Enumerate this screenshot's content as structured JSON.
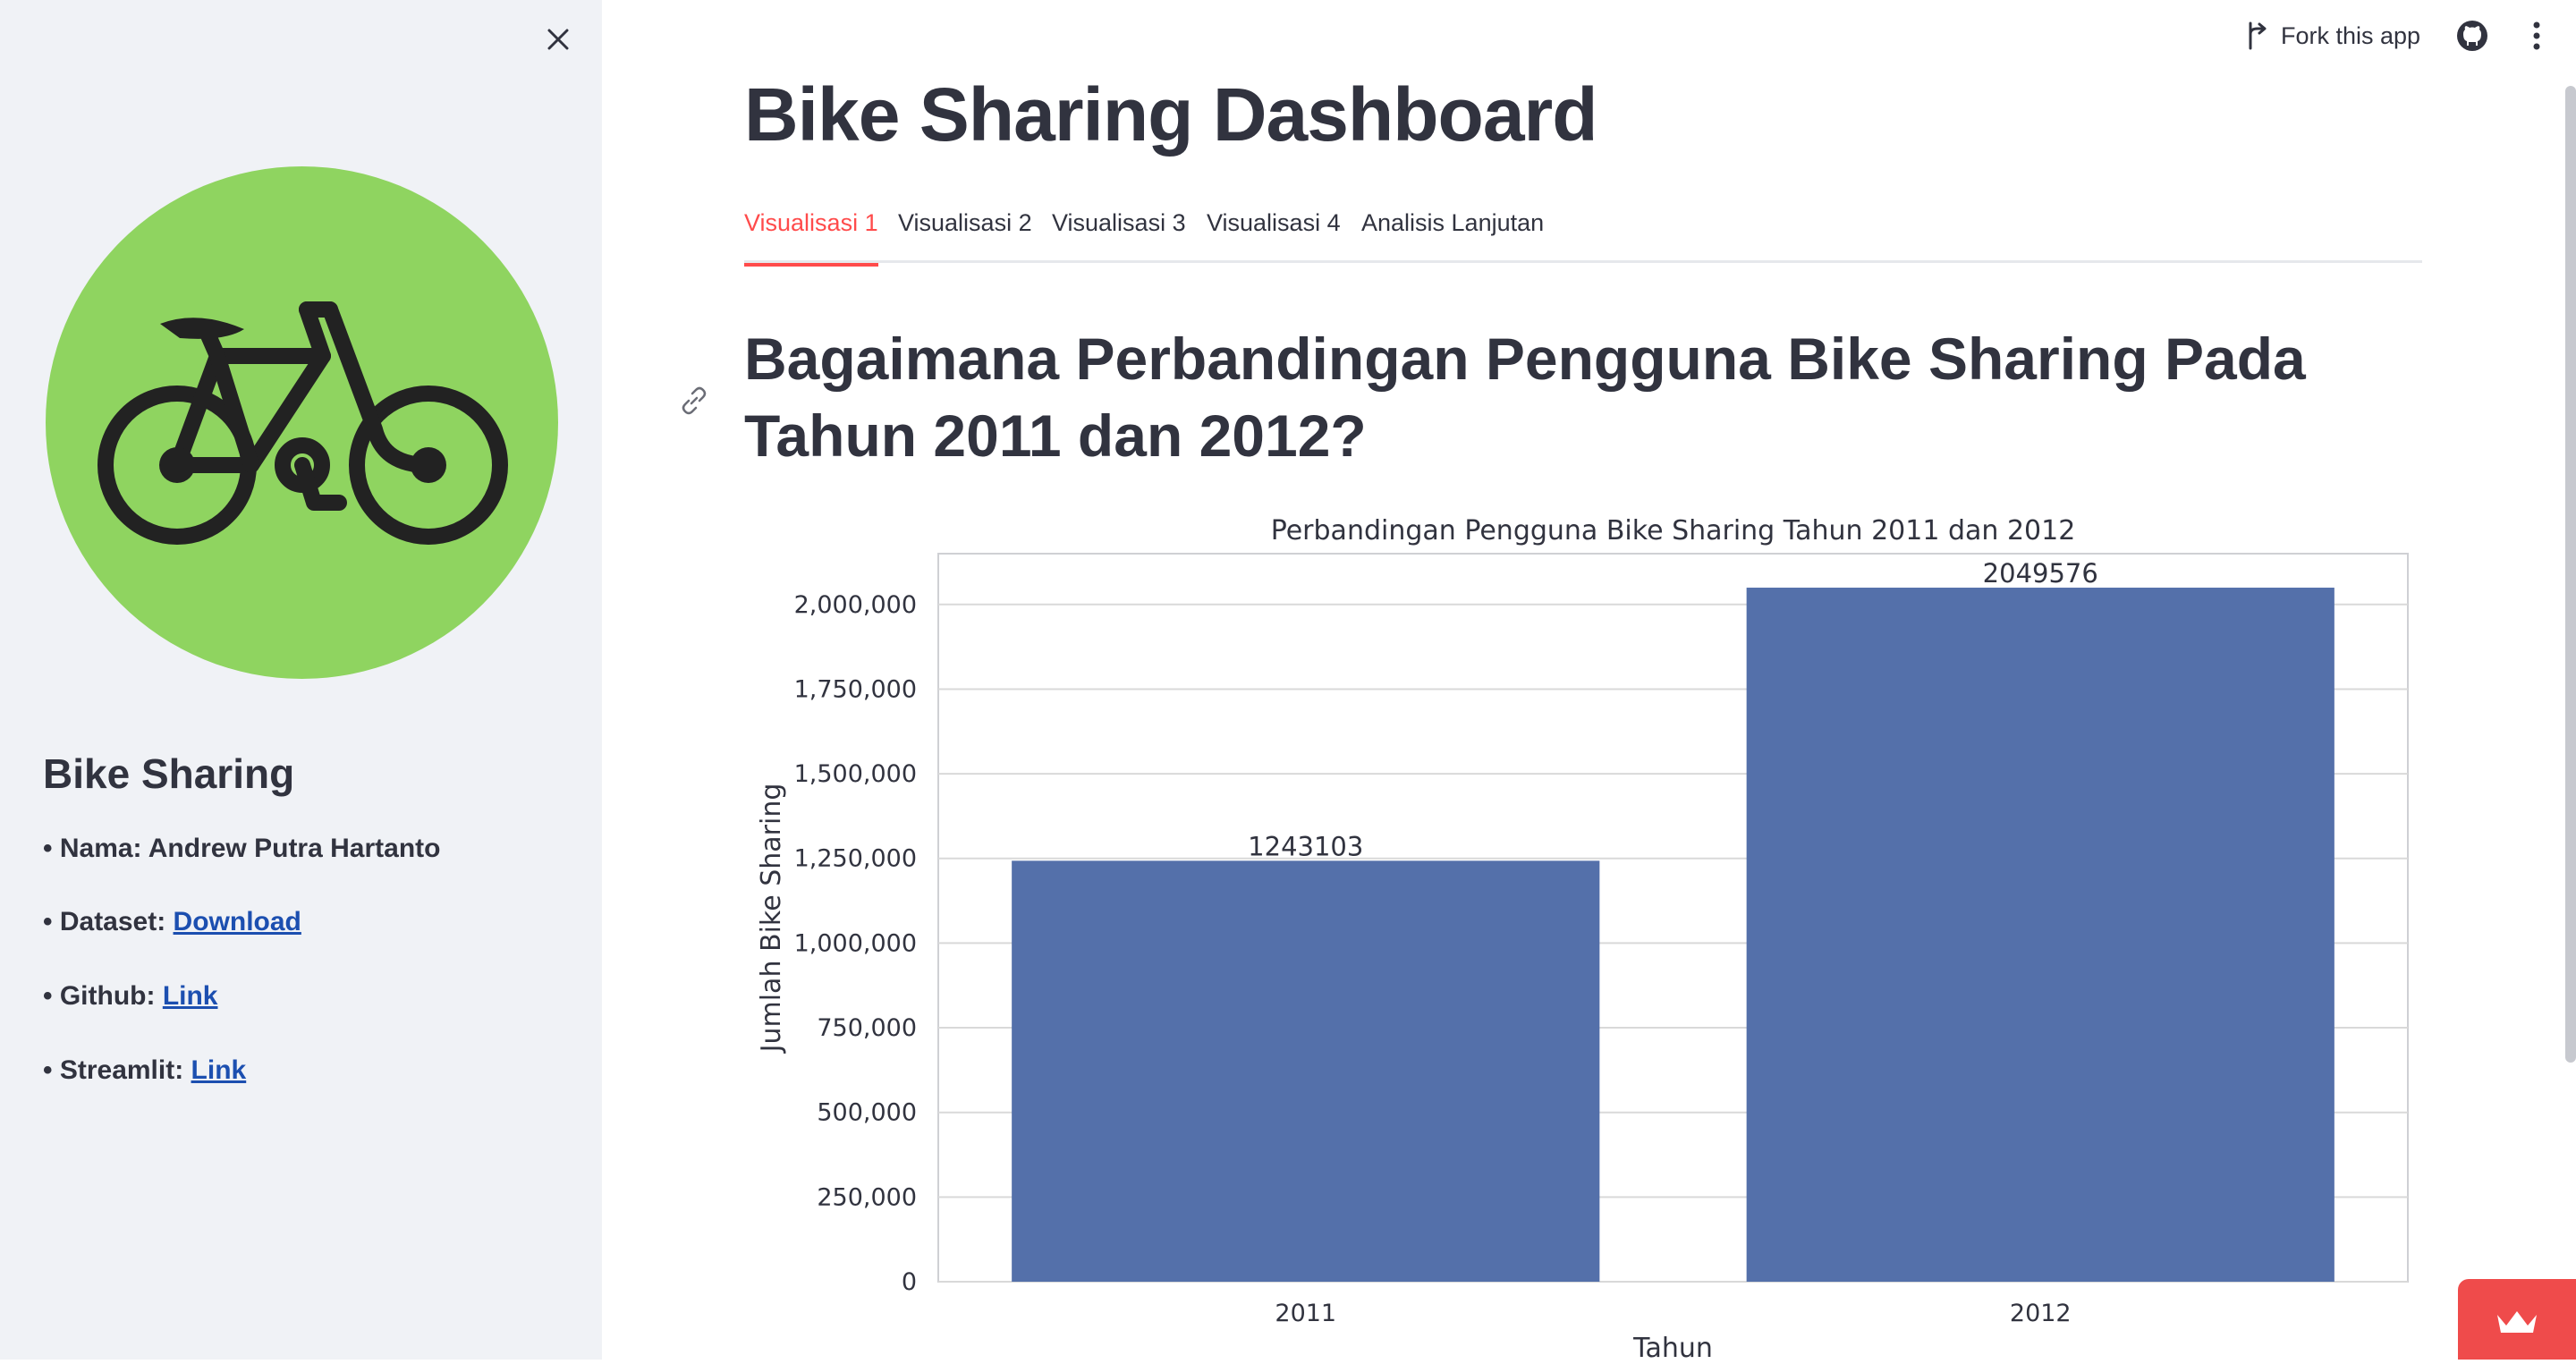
{
  "sidebar": {
    "title": "Bike Sharing",
    "items": [
      {
        "prefix": "• Nama: Andrew Putra Hartanto",
        "link": ""
      },
      {
        "prefix": "• Dataset: ",
        "link": "Download"
      },
      {
        "prefix": "• Github: ",
        "link": "Link"
      },
      {
        "prefix": "• Streamlit: ",
        "link": "Link"
      }
    ],
    "logo_color": "#8fd460",
    "link_color": "#1c4fb0"
  },
  "header": {
    "fork_label": "Fork this app"
  },
  "main": {
    "title": "Bike Sharing Dashboard",
    "tabs": [
      {
        "label": "Visualisasi 1",
        "active": true
      },
      {
        "label": "Visualisasi 2",
        "active": false
      },
      {
        "label": "Visualisasi 3",
        "active": false
      },
      {
        "label": "Visualisasi 4",
        "active": false
      },
      {
        "label": "Analisis Lanjutan",
        "active": false
      }
    ],
    "question": "Bagaimana Perbandingan Pengguna Bike Sharing Pada Tahun 2011 dan 2012?",
    "accent_color": "#ff4b4b"
  },
  "chart_data": {
    "type": "bar",
    "title": "Perbandingan Pengguna Bike Sharing Tahun 2011 dan 2012",
    "xlabel": "Tahun",
    "ylabel": "Jumlah Bike Sharing",
    "categories": [
      "2011",
      "2012"
    ],
    "values": [
      1243103,
      2049576
    ],
    "data_labels": [
      "1243103",
      "2049576"
    ],
    "ylim": [
      0,
      2150000
    ],
    "yticks": [
      0,
      250000,
      500000,
      750000,
      1000000,
      1250000,
      1500000,
      1750000,
      2000000
    ],
    "ytick_labels": [
      "0",
      "250,000",
      "500,000",
      "750,000",
      "1,000,000",
      "1,250,000",
      "1,500,000",
      "1,750,000",
      "2,000,000"
    ],
    "grid": true,
    "bar_color": "#5470aa"
  }
}
